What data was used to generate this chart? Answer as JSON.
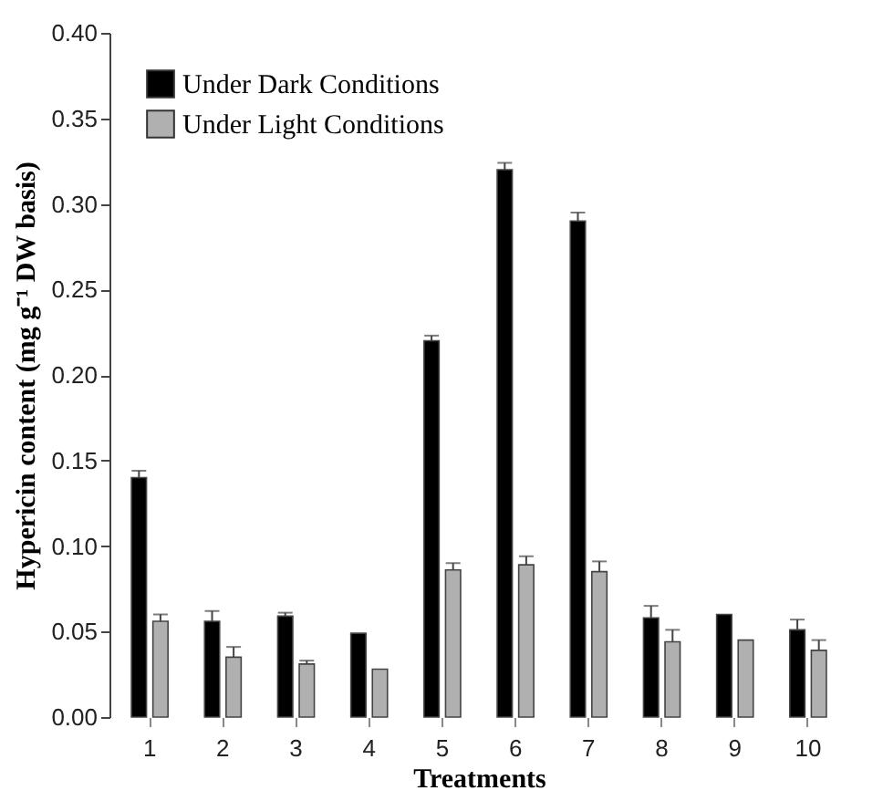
{
  "chart_data": {
    "type": "bar",
    "xlabel": "Treatments",
    "ylabel": "Hypericin content (mg g⁻¹ DW basis)",
    "categories": [
      "1",
      "2",
      "3",
      "4",
      "5",
      "6",
      "7",
      "8",
      "9",
      "10"
    ],
    "series": [
      {
        "name": "Under Dark Conditions",
        "color": "#000000",
        "values": [
          0.14,
          0.056,
          0.059,
          0.049,
          0.22,
          0.32,
          0.29,
          0.058,
          0.06,
          0.051
        ],
        "errors": [
          [
            0.14,
            0.144
          ],
          [
            0.056,
            0.062
          ],
          [
            0.059,
            0.061
          ],
          null,
          [
            0.22,
            0.223
          ],
          [
            0.32,
            0.324
          ],
          [
            0.29,
            0.295
          ],
          [
            0.058,
            0.065
          ],
          null,
          [
            0.051,
            0.057
          ]
        ]
      },
      {
        "name": "Under Light Conditions",
        "color": "#b0b0b0",
        "values": [
          0.056,
          0.035,
          0.031,
          0.028,
          0.086,
          0.089,
          0.085,
          0.044,
          0.045,
          0.039
        ],
        "errors": [
          [
            0.056,
            0.06
          ],
          [
            0.035,
            0.041
          ],
          [
            0.031,
            0.033
          ],
          null,
          [
            0.086,
            0.09
          ],
          [
            0.089,
            0.094
          ],
          [
            0.085,
            0.091
          ],
          [
            0.044,
            0.051
          ],
          null,
          [
            0.039,
            0.045
          ]
        ]
      }
    ],
    "ylim": [
      0,
      0.4
    ],
    "yticks": [
      {
        "value": 0,
        "label": "0.00"
      },
      {
        "value": 0.05,
        "label": "0.05"
      },
      {
        "value": 0.1,
        "label": "0.10"
      },
      {
        "value": 0.15,
        "label": "0.15"
      },
      {
        "value": 0.2,
        "label": "0.20"
      },
      {
        "value": 0.25,
        "label": "0.25"
      },
      {
        "value": 0.3,
        "label": "0.30"
      },
      {
        "value": 0.35,
        "label": "0.35"
      },
      {
        "value": 0.4,
        "label": "0.40"
      }
    ],
    "grid": false,
    "legend": "top left"
  }
}
